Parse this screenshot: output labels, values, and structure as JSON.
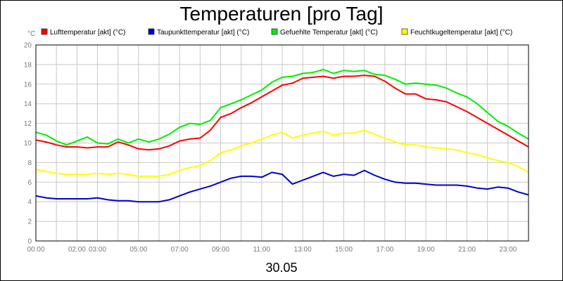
{
  "chart_data": {
    "type": "line",
    "title": "Temperaturen [pro Tag]",
    "ylabel": "°C",
    "xlabel": "30.05",
    "ylim": [
      0,
      20
    ],
    "xlim_hours": [
      0,
      24
    ],
    "grid": true,
    "legend_position": "top",
    "y_ticks": [
      "0",
      "2",
      "4",
      "6",
      "8",
      "10",
      "12",
      "14",
      "16",
      "18",
      "20"
    ],
    "x_ticks": [
      {
        "hour": 0,
        "label": "00:00"
      },
      {
        "hour": 2,
        "label": "02:00"
      },
      {
        "hour": 3,
        "label": "03:00"
      },
      {
        "hour": 5,
        "label": "05:00"
      },
      {
        "hour": 7,
        "label": "07:00"
      },
      {
        "hour": 9,
        "label": "09:00"
      },
      {
        "hour": 11,
        "label": "11:00"
      },
      {
        "hour": 13,
        "label": "13:00"
      },
      {
        "hour": 15,
        "label": "15:00"
      },
      {
        "hour": 17,
        "label": "17:00"
      },
      {
        "hour": 19,
        "label": "19:00"
      },
      {
        "hour": 21,
        "label": "21:00"
      },
      {
        "hour": 23,
        "label": "23:00"
      }
    ],
    "x": [
      0,
      0.5,
      1,
      1.5,
      2,
      2.5,
      3,
      3.5,
      4,
      4.5,
      5,
      5.5,
      6,
      6.5,
      7,
      7.5,
      8,
      8.5,
      9,
      9.5,
      10,
      10.5,
      11,
      11.5,
      12,
      12.5,
      13,
      13.5,
      14,
      14.5,
      15,
      15.5,
      16,
      16.5,
      17,
      17.5,
      18,
      18.5,
      19,
      19.5,
      20,
      20.5,
      21,
      21.5,
      22,
      22.5,
      23,
      23.5,
      24
    ],
    "series": [
      {
        "name": "Lufttemperatur [akt] (°C)",
        "color": "#ff0000",
        "values": [
          10.3,
          10.1,
          9.8,
          9.6,
          9.6,
          9.5,
          9.6,
          9.6,
          10.1,
          9.8,
          9.4,
          9.3,
          9.4,
          9.7,
          10.2,
          10.4,
          10.5,
          11.3,
          12.6,
          13.0,
          13.6,
          14.1,
          14.7,
          15.3,
          15.9,
          16.1,
          16.6,
          16.7,
          16.8,
          16.6,
          16.8,
          16.8,
          16.9,
          16.8,
          16.3,
          15.6,
          15.0,
          15.0,
          14.5,
          14.4,
          14.2,
          13.7,
          13.2,
          12.6,
          12.0,
          11.4,
          10.8,
          10.2,
          9.6
        ]
      },
      {
        "name": "Taupunkttemperatur [akt] (°C)",
        "color": "#0000cc",
        "values": [
          4.6,
          4.4,
          4.3,
          4.3,
          4.3,
          4.3,
          4.4,
          4.2,
          4.1,
          4.1,
          4.0,
          4.0,
          4.0,
          4.2,
          4.6,
          5.0,
          5.3,
          5.6,
          6.0,
          6.4,
          6.6,
          6.6,
          6.5,
          7.0,
          6.8,
          5.8,
          6.2,
          6.6,
          7.0,
          6.6,
          6.8,
          6.7,
          7.2,
          6.7,
          6.3,
          6.0,
          5.9,
          5.9,
          5.8,
          5.7,
          5.7,
          5.7,
          5.6,
          5.4,
          5.3,
          5.5,
          5.4,
          5.0,
          4.7
        ]
      },
      {
        "name": "Gefuehlte Temperatur [akt] (°C)",
        "color": "#00ee00",
        "values": [
          11.1,
          10.8,
          10.2,
          9.8,
          10.2,
          10.6,
          10.0,
          9.9,
          10.4,
          10.0,
          10.4,
          10.1,
          10.4,
          10.9,
          11.6,
          12.0,
          11.9,
          12.3,
          13.6,
          14.0,
          14.4,
          14.9,
          15.4,
          16.2,
          16.7,
          16.8,
          17.1,
          17.2,
          17.5,
          17.1,
          17.4,
          17.3,
          17.4,
          17.0,
          16.9,
          16.5,
          16.0,
          16.1,
          16.0,
          15.9,
          15.6,
          15.1,
          14.7,
          14.0,
          13.1,
          12.2,
          11.7,
          11.0,
          10.4
        ]
      },
      {
        "name": "Feuchtkugeltemperatur [akt] (°C)",
        "color": "#ffff00",
        "values": [
          7.3,
          7.1,
          6.9,
          6.8,
          6.8,
          6.8,
          6.9,
          6.8,
          6.9,
          6.8,
          6.6,
          6.6,
          6.6,
          6.8,
          7.2,
          7.5,
          7.7,
          8.2,
          9.0,
          9.3,
          9.7,
          10.0,
          10.4,
          10.8,
          11.1,
          10.5,
          10.8,
          11.0,
          11.2,
          10.8,
          11.0,
          11.0,
          11.3,
          10.9,
          10.5,
          10.1,
          9.8,
          9.8,
          9.6,
          9.5,
          9.4,
          9.3,
          9.0,
          8.8,
          8.5,
          8.2,
          8.0,
          7.6,
          7.0
        ]
      }
    ]
  }
}
